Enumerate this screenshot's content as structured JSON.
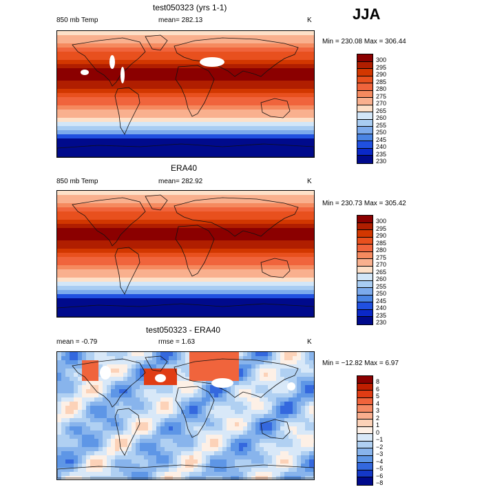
{
  "season": "JJA",
  "panels": [
    {
      "title": "test050323 (yrs 1-1)",
      "variable": "850 mb Temp",
      "stat1": "mean= 282.13",
      "stat2": "",
      "units": "K",
      "minmax": "Min = 230.08 Max = 306.44",
      "levels": [
        "300",
        "295",
        "290",
        "285",
        "280",
        "275",
        "270",
        "265",
        "260",
        "255",
        "250",
        "245",
        "240",
        "235",
        "230"
      ],
      "colors": [
        "#8b0000",
        "#b01e00",
        "#d23700",
        "#e8501e",
        "#f0643c",
        "#f58a5f",
        "#f9b08e",
        "#fde0c8",
        "#d2e6f8",
        "#a8ccf2",
        "#7caaec",
        "#4a84e4",
        "#2050e0",
        "#0a28c8",
        "#000a8c"
      ],
      "kind": "model"
    },
    {
      "title": "ERA40",
      "variable": "850 mb Temp",
      "stat1": "mean= 282.92",
      "stat2": "",
      "units": "K",
      "minmax": "Min = 230.73 Max = 305.42",
      "levels": [
        "300",
        "295",
        "290",
        "285",
        "280",
        "275",
        "270",
        "265",
        "260",
        "255",
        "250",
        "245",
        "240",
        "235",
        "230"
      ],
      "colors": [
        "#8b0000",
        "#b01e00",
        "#d23700",
        "#e8501e",
        "#f0643c",
        "#f58a5f",
        "#f9b08e",
        "#fde0c8",
        "#d2e6f8",
        "#a8ccf2",
        "#7caaec",
        "#4a84e4",
        "#2050e0",
        "#0a28c8",
        "#000a8c"
      ],
      "kind": "obs"
    },
    {
      "title": "test050323 - ERA40",
      "variable": "",
      "stat1": "mean =   -0.79",
      "stat2": "rmse =   1.63",
      "units": "K",
      "minmax": "Min = −12.82 Max =    6.97",
      "levels": [
        "8",
        "6",
        "5",
        "4",
        "3",
        "2",
        "1",
        "0",
        "−1",
        "−2",
        "−3",
        "−4",
        "−5",
        "−6",
        "−8"
      ],
      "colors": [
        "#8b0000",
        "#c01e00",
        "#e03c14",
        "#f0643c",
        "#f58a64",
        "#f9ae8e",
        "#fcd2b8",
        "#fdf0e6",
        "#d8e8f8",
        "#b0d0f2",
        "#88b4ec",
        "#5e96e6",
        "#3468de",
        "#1438c8",
        "#000a8c"
      ],
      "kind": "diff"
    }
  ]
}
